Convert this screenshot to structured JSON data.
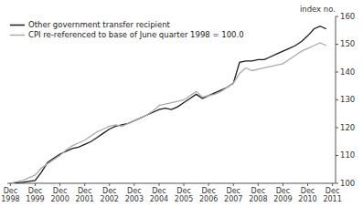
{
  "chart_data": {
    "type": "line",
    "y_label": "index no.",
    "categories": [
      "Dec\n1998",
      null,
      null,
      null,
      "Dec\n1999",
      null,
      null,
      null,
      "Dec\n2000",
      null,
      null,
      null,
      "Dec\n2001",
      null,
      null,
      null,
      "Dec\n2002",
      null,
      null,
      null,
      "Dec\n2003",
      null,
      null,
      null,
      "Dec\n2004",
      null,
      null,
      null,
      "Dec\n2005",
      null,
      null,
      null,
      "Dec\n2006",
      null,
      null,
      null,
      "Dec\n2007",
      null,
      null,
      null,
      "Dec\n2008",
      null,
      null,
      null,
      "Dec\n2009",
      null,
      null,
      null,
      "Dec\n2010",
      null,
      null,
      null,
      "Dec\n2011"
    ],
    "series": [
      {
        "name": "Other government transfer recipient",
        "color": "#1a1a1a",
        "values": [
          100.0,
          100.2,
          100.4,
          100.7,
          101.0,
          104.0,
          107.5,
          109.0,
          110.5,
          111.5,
          112.5,
          113.0,
          114.0,
          115.0,
          116.5,
          118.0,
          119.5,
          120.5,
          121.0,
          121.5,
          122.5,
          123.5,
          124.5,
          125.5,
          126.5,
          127.0,
          126.5,
          127.5,
          129.0,
          130.5,
          132.0,
          130.5,
          131.5,
          132.5,
          133.5,
          134.5,
          136.0,
          143.5,
          144.0,
          144.0,
          144.5,
          144.5,
          145.5,
          146.5,
          147.5,
          148.5,
          149.5,
          151.0,
          153.0,
          155.5,
          156.5,
          155.5,
          null
        ]
      },
      {
        "name": "CPI re-referenced to base of June quarter 1998 = 100.0",
        "color": "#aaaaaa",
        "values": [
          100.0,
          100.5,
          101.0,
          102.0,
          103.0,
          105.5,
          107.0,
          108.5,
          110.0,
          112.0,
          113.5,
          114.5,
          115.5,
          117.0,
          118.5,
          119.5,
          120.5,
          121.0,
          120.5,
          121.5,
          122.5,
          123.5,
          124.5,
          126.0,
          128.0,
          128.5,
          129.0,
          129.5,
          130.0,
          131.5,
          133.0,
          131.0,
          131.5,
          132.0,
          133.0,
          134.5,
          136.0,
          139.5,
          141.5,
          140.5,
          141.0,
          141.5,
          142.0,
          142.5,
          143.0,
          144.5,
          146.0,
          147.5,
          148.5,
          149.5,
          150.5,
          149.5,
          null
        ]
      }
    ],
    "ylim": [
      100,
      160
    ],
    "yticks": [
      100,
      110,
      120,
      130,
      140,
      150,
      160
    ],
    "grid": false,
    "legend": "upper left"
  }
}
